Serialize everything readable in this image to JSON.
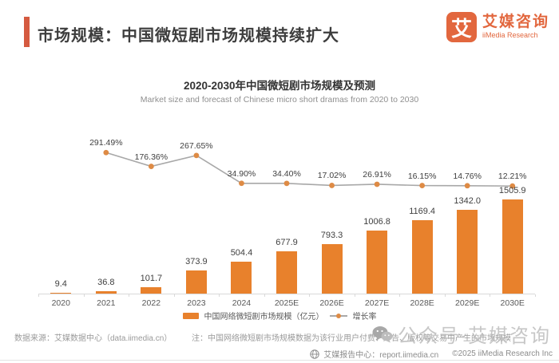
{
  "header": {
    "title": "市场规模：中国微短剧市场规模持续扩大",
    "logo": {
      "glyph": "艾",
      "name_cn": "艾媒咨询",
      "name_en": "iiMedia Research"
    }
  },
  "chart_data": {
    "type": "combo-bar-line",
    "title": "2020-2030年中国微短剧市场规模及预测",
    "subtitle": "Market size and forecast of Chinese micro short dramas from 2020 to 2030",
    "categories": [
      "2020",
      "2021",
      "2022",
      "2023",
      "2024",
      "2025E",
      "2026E",
      "2027E",
      "2028E",
      "2029E",
      "2030E"
    ],
    "series": [
      {
        "name": "中国网络微短剧市场规模（亿元）",
        "type": "bar",
        "values": [
          9.4,
          36.8,
          101.7,
          373.9,
          504.4,
          677.9,
          793.3,
          1006.8,
          1169.4,
          1342.0,
          1505.9
        ],
        "labels": [
          "9.4",
          "36.8",
          "101.7",
          "373.9",
          "504.4",
          "677.9",
          "793.3",
          "1006.8",
          "1169.4",
          "1342.0",
          "1505.9"
        ]
      },
      {
        "name": "增长率",
        "type": "line",
        "unit": "%",
        "values": [
          null,
          291.49,
          176.36,
          267.65,
          34.9,
          34.4,
          17.02,
          26.91,
          16.15,
          14.76,
          12.21
        ],
        "labels": [
          "",
          "291.49%",
          "176.36%",
          "267.65%",
          "34.90%",
          "34.40%",
          "17.02%",
          "26.91%",
          "16.15%",
          "14.76%",
          "12.21%"
        ]
      }
    ],
    "ylim_bar": [
      0,
      1600
    ],
    "ylim_line_pct": [
      0,
      320
    ],
    "gridlines": false,
    "y_axis_visible": false,
    "legend_position": "bottom",
    "bar_color": "#e8812c",
    "line_color": "#a8a8a8",
    "marker_color": "#de8b45"
  },
  "legend": {
    "bar_label": "中国网络微短剧市场规模（亿元）",
    "line_label": "增长率"
  },
  "footer": {
    "source": "数据来源：艾媒数据中心（data.iimedia.cn）",
    "note": "注：中国网络微短剧市场规模数据为该行业用户付费、广告、版权等交易中产生的市场规模",
    "watermark": "公众号·艾媒咨询",
    "report_center": "艾媒报告中心：report.iimedia.cn",
    "copyright": "©2025  iiMedia Research Inc"
  },
  "colors": {
    "accent_red": "#d55a40",
    "brand_orange": "#e2673e",
    "bar_orange": "#e8812c",
    "line_gray": "#a8a8a8",
    "dot_orange": "#de8b45"
  }
}
